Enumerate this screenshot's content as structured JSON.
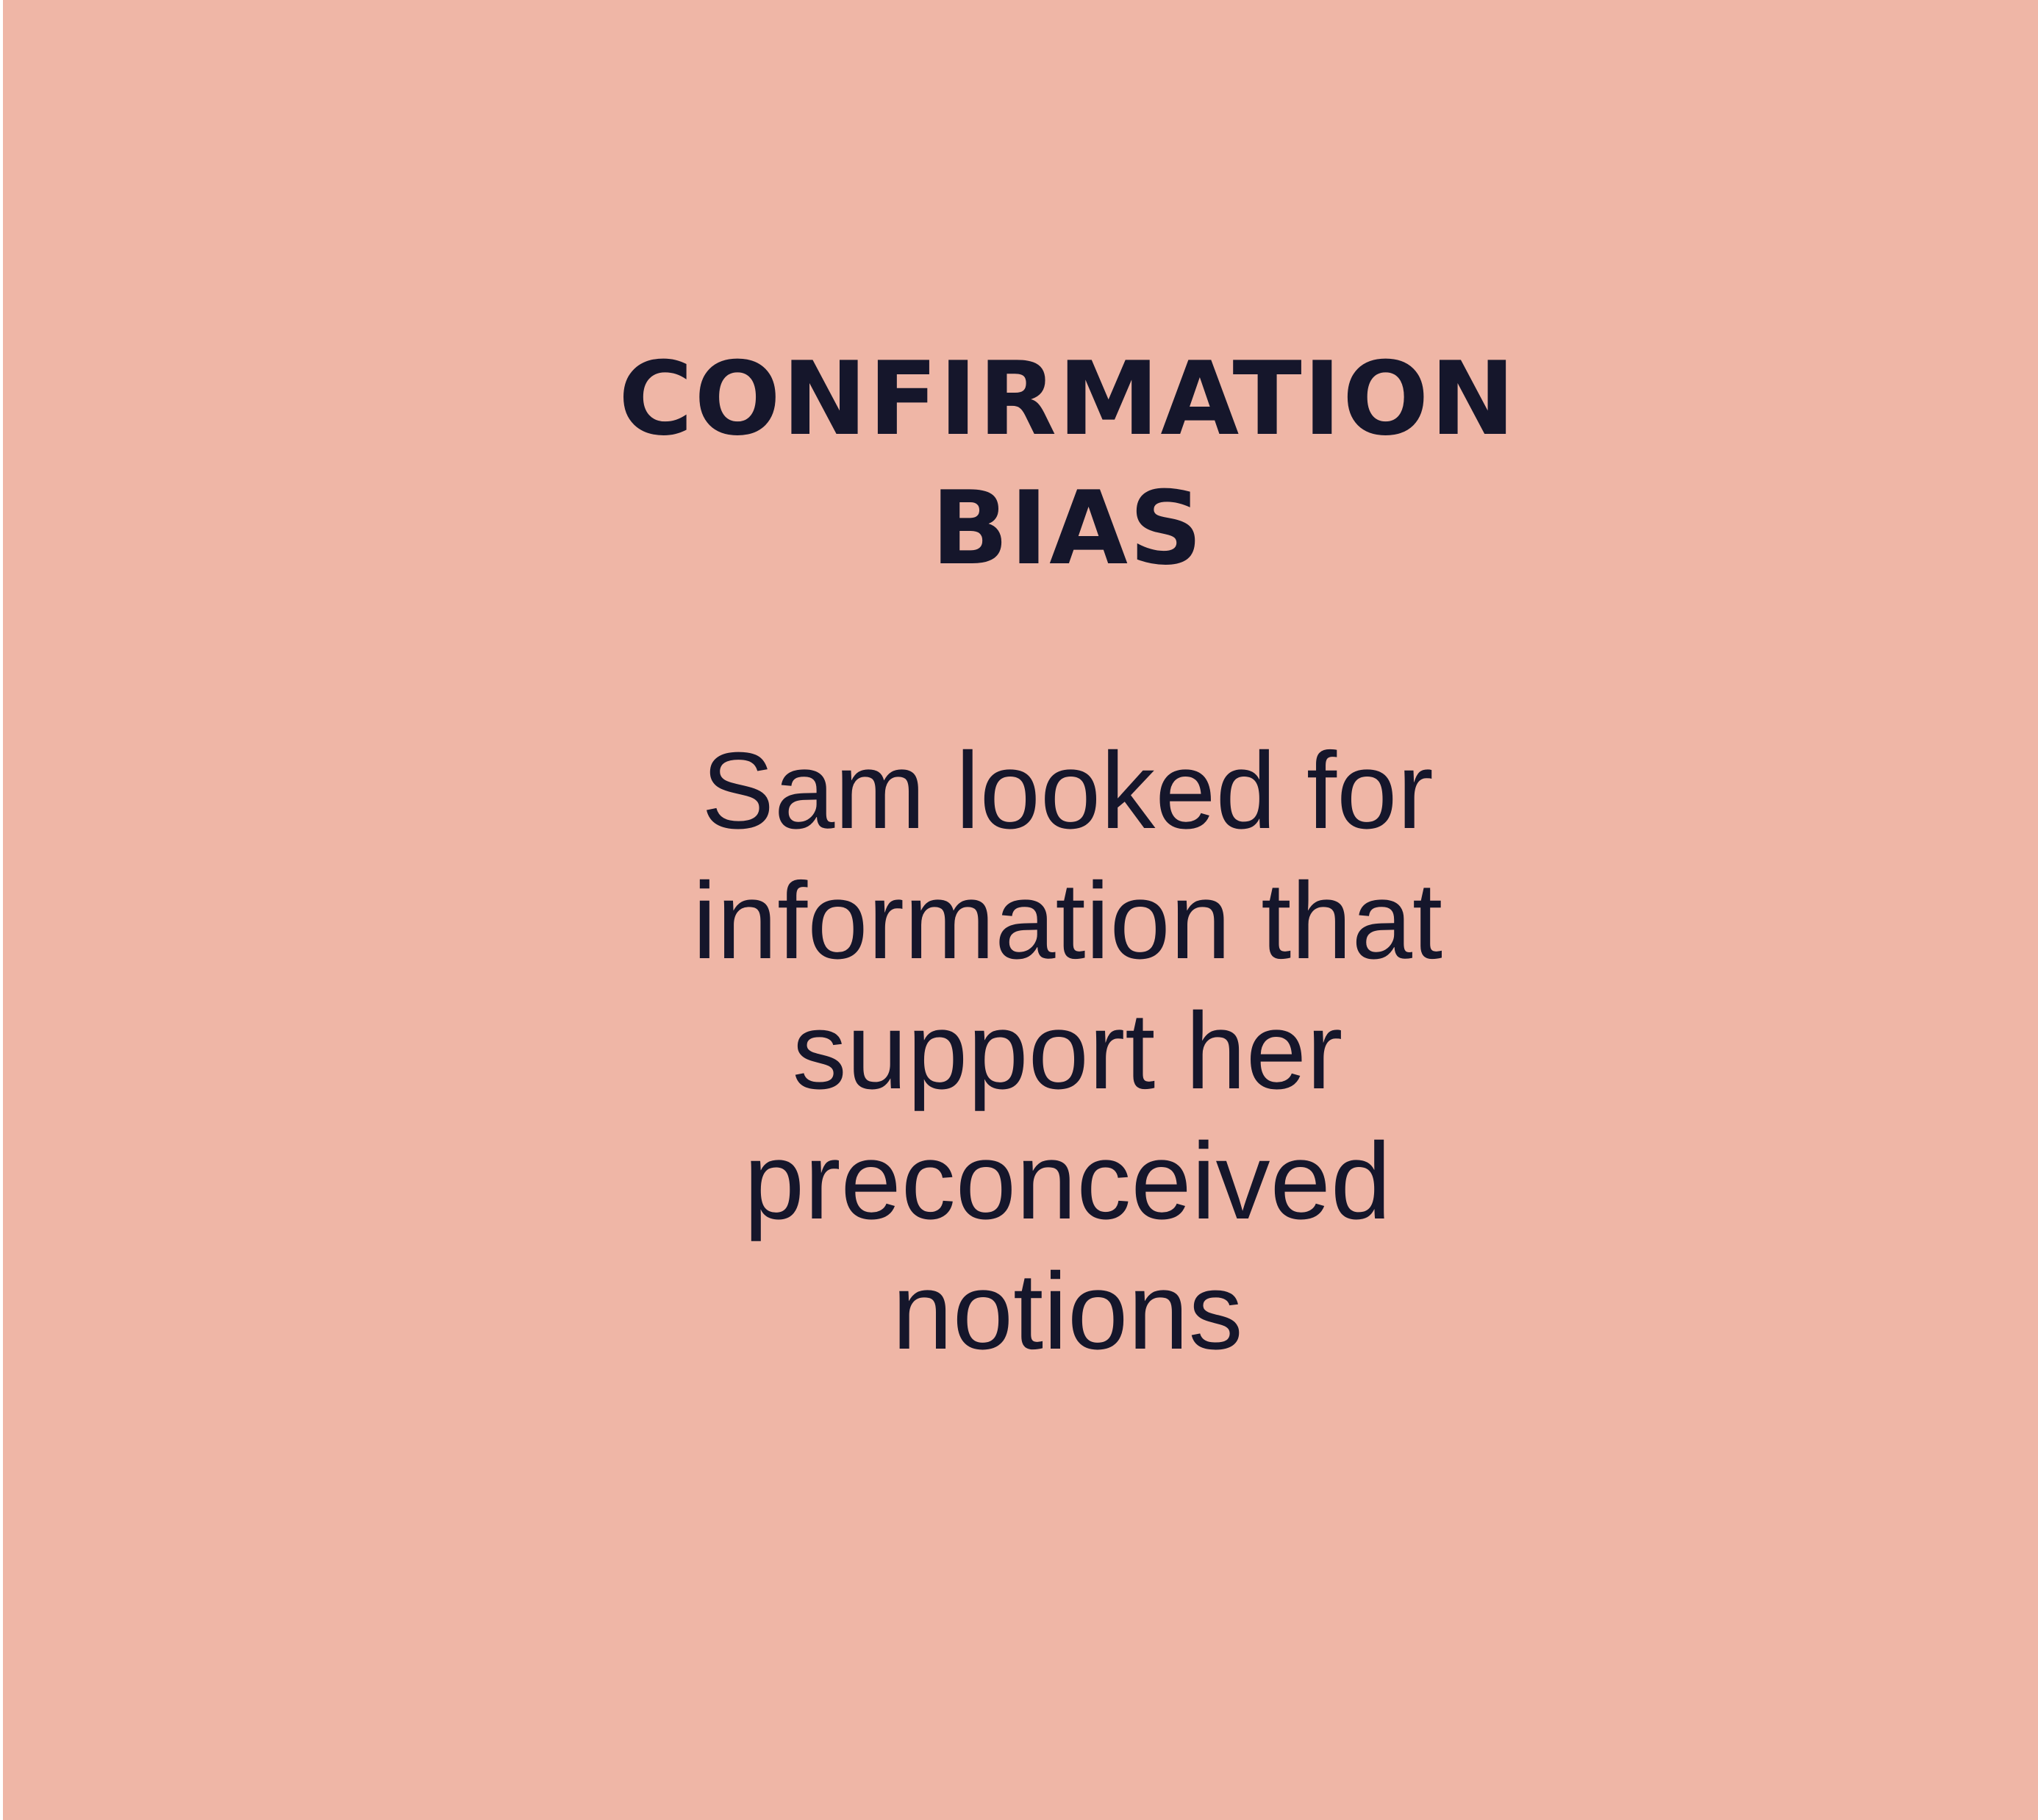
{
  "card": {
    "background_color": "#efb6a6",
    "text_color": "#15162b"
  },
  "title": {
    "line1": "CONFIRMATION",
    "line2": "BIAS"
  },
  "description": {
    "line1": "Sam looked for",
    "line2": "information that",
    "line3": "support her",
    "line4": "preconceived",
    "line5": "notions"
  }
}
